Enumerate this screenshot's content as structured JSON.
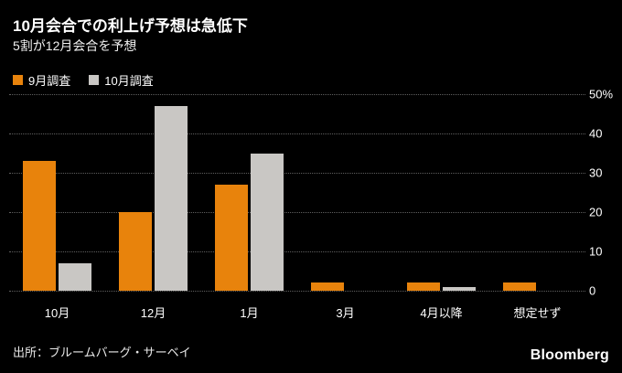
{
  "chart_data": {
    "type": "bar",
    "title": "10月会合での利上げ予想は急低下",
    "subtitle": "5割が12月会合を予想",
    "categories": [
      "10月",
      "12月",
      "1月",
      "3月",
      "4月以降",
      "想定せず"
    ],
    "series": [
      {
        "name": "9月調査",
        "color": "#E8830C",
        "values": [
          33,
          20,
          27,
          2,
          2,
          2
        ]
      },
      {
        "name": "10月調査",
        "color": "#C9C7C4",
        "values": [
          7,
          47,
          35,
          0,
          1,
          0
        ]
      }
    ],
    "ylim": [
      0,
      50
    ],
    "yticks": [
      0,
      10,
      20,
      30,
      40,
      50
    ],
    "ytick_labels": [
      "0",
      "10",
      "20",
      "30",
      "40",
      "50%"
    ],
    "grid": "horizontal-dotted",
    "legend_position": "top-left",
    "source": "出所：ブルームバーグ・サーベイ",
    "logo": "Bloomberg"
  },
  "colors": {
    "background": "#000000",
    "text": "#ffffff",
    "gridline": "#5f5f5f"
  }
}
